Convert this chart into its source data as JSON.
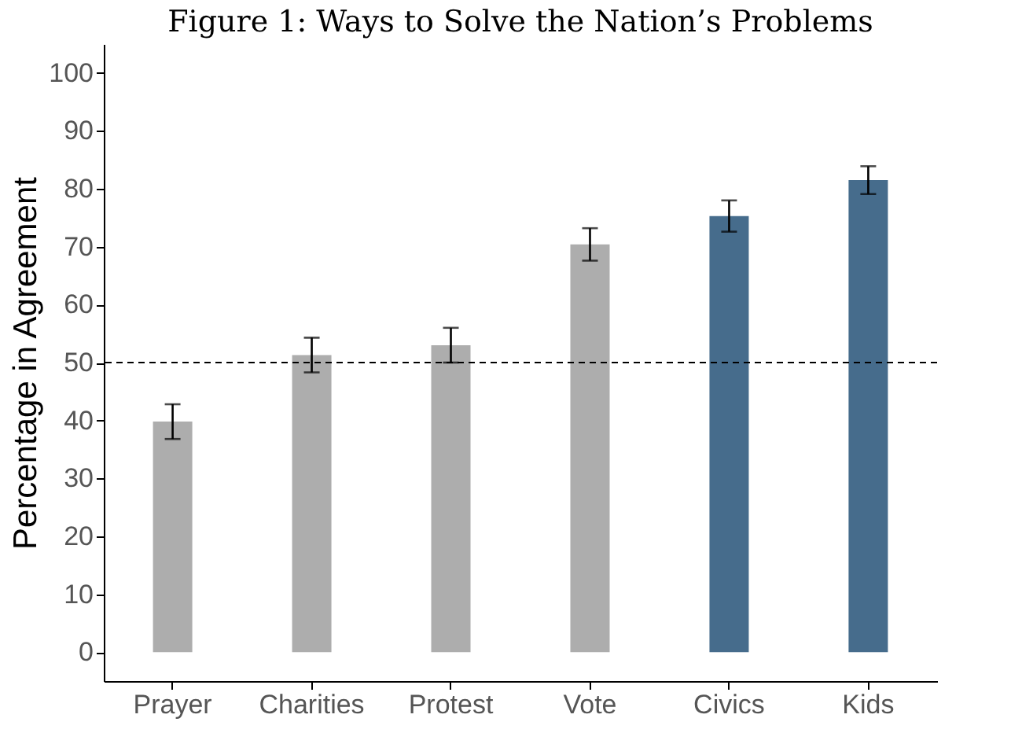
{
  "chart_data": {
    "type": "bar",
    "title": "Figure 1: Ways to Solve the Nation’s Problems",
    "ylabel": "Percentage in Agreement",
    "categories": [
      "Prayer",
      "Charities",
      "Protest",
      "Vote",
      "Civics",
      "Kids"
    ],
    "values": [
      39.8,
      51.3,
      53,
      70.4,
      75.3,
      81.5
    ],
    "errors": [
      3,
      3,
      3,
      2.8,
      2.7,
      2.4
    ],
    "colors": [
      "#adadad",
      "#adadad",
      "#adadad",
      "#adadad",
      "#466c8c",
      "#466c8c"
    ],
    "ylim": [
      -5,
      105
    ],
    "yticks": [
      0,
      10,
      20,
      30,
      40,
      50,
      60,
      70,
      80,
      90,
      100
    ],
    "ref_lines": [
      {
        "axis": "y",
        "value": 50,
        "label": null,
        "line_style": "dashed",
        "color": "#000000"
      }
    ],
    "grid": false
  }
}
